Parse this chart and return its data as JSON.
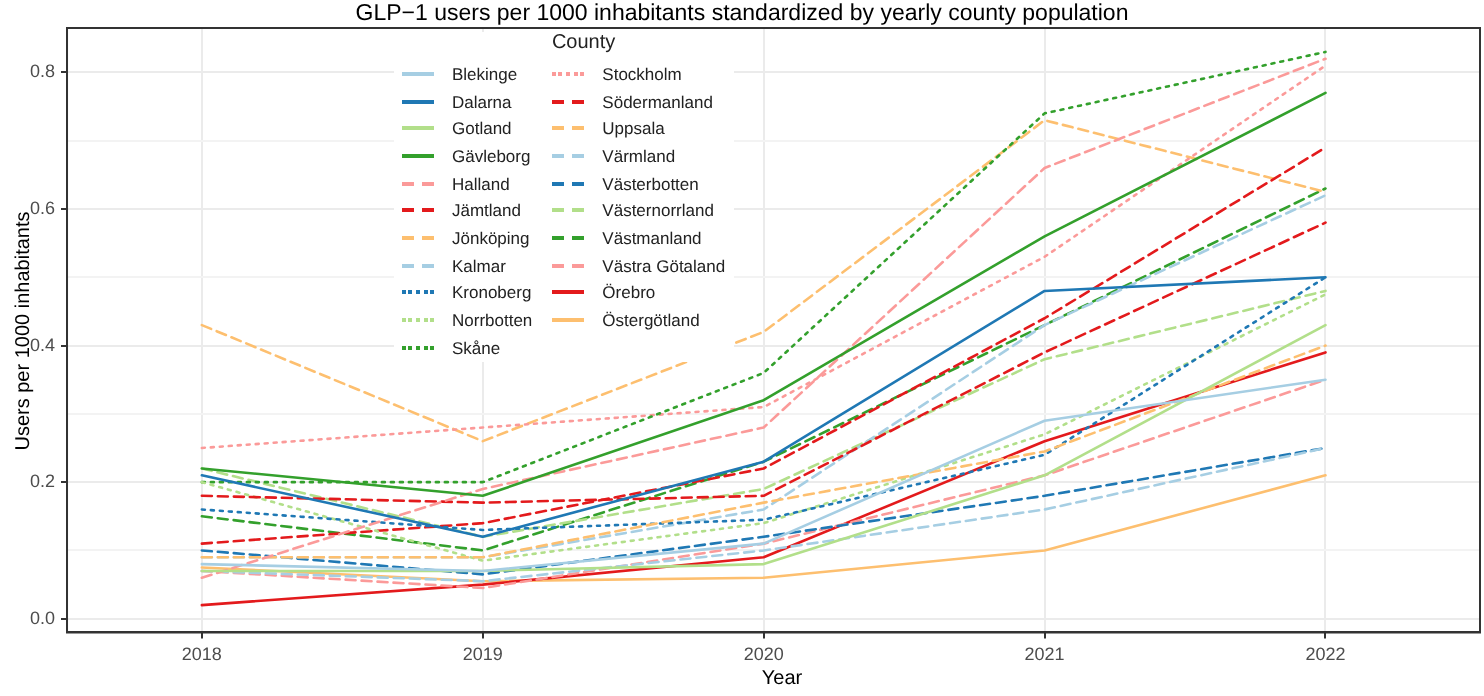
{
  "chart_data": {
    "type": "line",
    "title": "GLP−1 users per 1000 inhabitants standardized by yearly county population",
    "xlabel": "Year",
    "ylabel": "Users per 1000 inhabitants",
    "legend_title": "County",
    "legend": "top left",
    "grid": true,
    "marker": "none",
    "x": [
      2018,
      2019,
      2020,
      2021,
      2022
    ],
    "xlim": [
      2017.52,
      2022.55
    ],
    "xticks": [
      2018,
      2019,
      2020,
      2021,
      2022
    ],
    "ylim": [
      -0.02,
      0.865
    ],
    "yticks": [
      {
        "value": 0,
        "label": "0.0"
      },
      {
        "value": 0.1,
        "label": null
      },
      {
        "value": 0.2,
        "label": "0.2"
      },
      {
        "value": 0.3,
        "label": null
      },
      {
        "value": 0.4,
        "label": "0.4"
      },
      {
        "value": 0.5,
        "label": null
      },
      {
        "value": 0.6,
        "label": "0.6"
      },
      {
        "value": 0.7,
        "label": null
      },
      {
        "value": 0.8,
        "label": "0.8"
      }
    ],
    "series": [
      {
        "name": "Blekinge",
        "color": "#a6cee3",
        "line_style": "solid",
        "values": [
          0.08,
          0.07,
          0.11,
          0.29,
          0.35
        ]
      },
      {
        "name": "Dalarna",
        "color": "#1f78b4",
        "line_style": "solid",
        "values": [
          0.21,
          0.12,
          0.23,
          0.48,
          0.5
        ]
      },
      {
        "name": "Gotland",
        "color": "#b2df8a",
        "line_style": "solid",
        "values": [
          0.07,
          0.07,
          0.08,
          0.21,
          0.43
        ]
      },
      {
        "name": "Gävleborg",
        "color": "#33a02c",
        "line_style": "solid",
        "values": [
          0.22,
          0.18,
          0.32,
          0.56,
          0.77
        ]
      },
      {
        "name": "Halland",
        "color": "#fb9a99",
        "line_style": "dashed",
        "values": [
          0.06,
          0.19,
          0.28,
          0.66,
          0.82
        ]
      },
      {
        "name": "Jämtland",
        "color": "#e31a1c",
        "line_style": "dashed",
        "values": [
          0.18,
          0.17,
          0.18,
          0.39,
          0.58
        ]
      },
      {
        "name": "Jönköping",
        "color": "#fdbf6f",
        "line_style": "dashed",
        "values": [
          0.09,
          0.09,
          0.17,
          0.245,
          0.4
        ]
      },
      {
        "name": "Kalmar",
        "color": "#a6cee3",
        "line_style": "dashed",
        "values": [
          0.07,
          0.055,
          0.1,
          0.16,
          0.25
        ]
      },
      {
        "name": "Kronoberg",
        "color": "#1f78b4",
        "line_style": "dotted",
        "values": [
          0.16,
          0.13,
          0.145,
          0.24,
          0.5
        ]
      },
      {
        "name": "Norrbotten",
        "color": "#b2df8a",
        "line_style": "dotted",
        "values": [
          0.2,
          0.085,
          0.14,
          0.27,
          0.475
        ]
      },
      {
        "name": "Skåne",
        "color": "#33a02c",
        "line_style": "dotted",
        "values": [
          0.2,
          0.2,
          0.36,
          0.74,
          0.83
        ]
      },
      {
        "name": "Stockholm",
        "color": "#fb9a99",
        "line_style": "dotted",
        "values": [
          0.25,
          0.28,
          0.31,
          0.53,
          0.81
        ]
      },
      {
        "name": "Södermanland",
        "color": "#e31a1c",
        "line_style": "dashed",
        "values": [
          0.11,
          0.14,
          0.22,
          0.44,
          0.69
        ]
      },
      {
        "name": "Uppsala",
        "color": "#fdbf6f",
        "line_style": "dashed",
        "values": [
          0.43,
          0.26,
          0.42,
          0.73,
          0.625
        ]
      },
      {
        "name": "Värmland",
        "color": "#a6cee3",
        "line_style": "dashed",
        "values": [
          0.09,
          0.09,
          0.16,
          0.43,
          0.62
        ]
      },
      {
        "name": "Västerbotten",
        "color": "#1f78b4",
        "line_style": "dashed",
        "values": [
          0.1,
          0.065,
          0.12,
          0.18,
          0.25
        ]
      },
      {
        "name": "Västernorrland",
        "color": "#b2df8a",
        "line_style": "dashed",
        "values": [
          0.22,
          0.12,
          0.19,
          0.38,
          0.48
        ]
      },
      {
        "name": "Västmanland",
        "color": "#33a02c",
        "line_style": "dashed",
        "values": [
          0.15,
          0.1,
          0.23,
          0.43,
          0.63
        ]
      },
      {
        "name": "Västra Götaland",
        "color": "#fb9a99",
        "line_style": "dashed",
        "values": [
          0.07,
          0.045,
          0.11,
          0.21,
          0.35
        ]
      },
      {
        "name": "Örebro",
        "color": "#e31a1c",
        "line_style": "solid",
        "values": [
          0.02,
          0.05,
          0.09,
          0.26,
          0.39
        ]
      },
      {
        "name": "Östergötland",
        "color": "#fdbf6f",
        "line_style": "solid",
        "values": [
          0.075,
          0.055,
          0.06,
          0.1,
          0.21
        ]
      }
    ]
  }
}
